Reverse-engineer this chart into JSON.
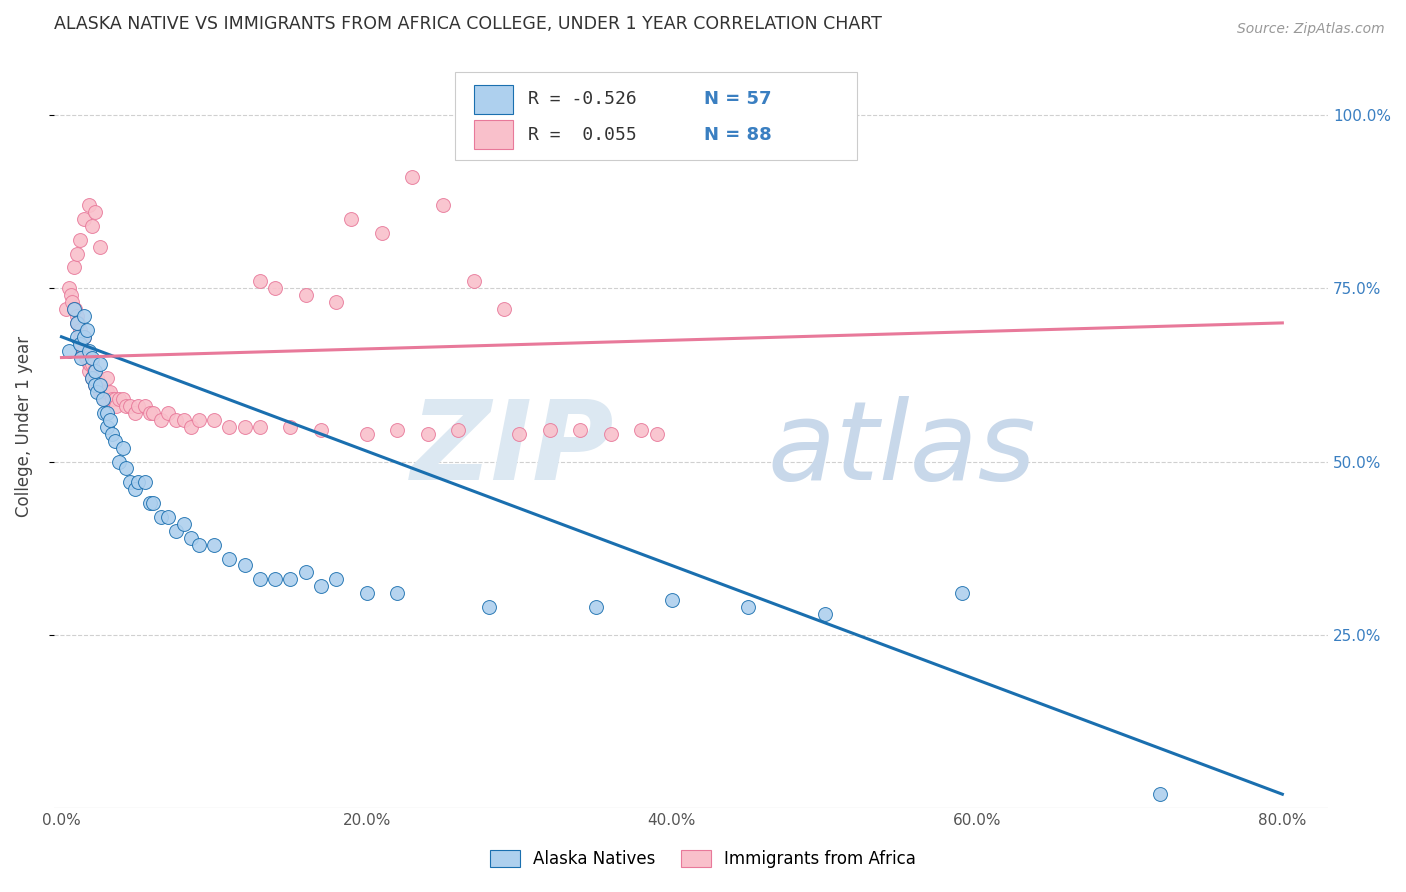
{
  "title": "ALASKA NATIVE VS IMMIGRANTS FROM AFRICA COLLEGE, UNDER 1 YEAR CORRELATION CHART",
  "source": "Source: ZipAtlas.com",
  "ylabel": "College, Under 1 year",
  "x_tick_labels": [
    "0.0%",
    "",
    "20.0%",
    "",
    "40.0%",
    "",
    "60.0%",
    "",
    "80.0%"
  ],
  "x_tick_positions": [
    0.0,
    0.1,
    0.2,
    0.3,
    0.4,
    0.5,
    0.6,
    0.7,
    0.8
  ],
  "y_tick_labels_right": [
    "100.0%",
    "75.0%",
    "50.0%",
    "25.0%"
  ],
  "y_tick_positions_right": [
    1.0,
    0.75,
    0.5,
    0.25
  ],
  "xlim": [
    -0.005,
    0.83
  ],
  "ylim": [
    0.0,
    1.1
  ],
  "color_blue": "#aed0ee",
  "color_pink": "#f9c0cb",
  "line_blue": "#1a6faf",
  "line_pink": "#e8799a",
  "background_color": "#ffffff",
  "grid_color": "#d0d0d0",
  "blue_scatter_x": [
    0.005,
    0.008,
    0.01,
    0.01,
    0.012,
    0.013,
    0.015,
    0.015,
    0.017,
    0.018,
    0.02,
    0.02,
    0.022,
    0.022,
    0.023,
    0.025,
    0.025,
    0.027,
    0.028,
    0.03,
    0.03,
    0.032,
    0.033,
    0.035,
    0.038,
    0.04,
    0.042,
    0.045,
    0.048,
    0.05,
    0.055,
    0.058,
    0.06,
    0.065,
    0.07,
    0.075,
    0.08,
    0.085,
    0.09,
    0.1,
    0.11,
    0.12,
    0.13,
    0.14,
    0.15,
    0.16,
    0.17,
    0.18,
    0.2,
    0.22,
    0.28,
    0.35,
    0.4,
    0.45,
    0.5,
    0.59,
    0.72
  ],
  "blue_scatter_y": [
    0.66,
    0.72,
    0.7,
    0.68,
    0.67,
    0.65,
    0.71,
    0.68,
    0.69,
    0.66,
    0.62,
    0.65,
    0.63,
    0.61,
    0.6,
    0.64,
    0.61,
    0.59,
    0.57,
    0.57,
    0.55,
    0.56,
    0.54,
    0.53,
    0.5,
    0.52,
    0.49,
    0.47,
    0.46,
    0.47,
    0.47,
    0.44,
    0.44,
    0.42,
    0.42,
    0.4,
    0.41,
    0.39,
    0.38,
    0.38,
    0.36,
    0.35,
    0.33,
    0.33,
    0.33,
    0.34,
    0.32,
    0.33,
    0.31,
    0.31,
    0.29,
    0.29,
    0.3,
    0.29,
    0.28,
    0.31,
    0.02
  ],
  "pink_scatter_x": [
    0.003,
    0.005,
    0.006,
    0.007,
    0.008,
    0.009,
    0.01,
    0.01,
    0.011,
    0.012,
    0.012,
    0.013,
    0.013,
    0.014,
    0.015,
    0.015,
    0.016,
    0.017,
    0.018,
    0.018,
    0.019,
    0.02,
    0.02,
    0.021,
    0.022,
    0.022,
    0.023,
    0.024,
    0.025,
    0.025,
    0.026,
    0.027,
    0.028,
    0.03,
    0.03,
    0.032,
    0.033,
    0.035,
    0.036,
    0.038,
    0.04,
    0.042,
    0.045,
    0.048,
    0.05,
    0.055,
    0.058,
    0.06,
    0.065,
    0.07,
    0.075,
    0.08,
    0.085,
    0.09,
    0.1,
    0.11,
    0.12,
    0.13,
    0.15,
    0.17,
    0.2,
    0.22,
    0.24,
    0.26,
    0.3,
    0.32,
    0.34,
    0.36,
    0.38,
    0.39,
    0.13,
    0.14,
    0.16,
    0.18,
    0.19,
    0.21,
    0.23,
    0.25,
    0.27,
    0.29,
    0.008,
    0.01,
    0.012,
    0.015,
    0.018,
    0.02,
    0.022,
    0.025
  ],
  "pink_scatter_y": [
    0.72,
    0.75,
    0.74,
    0.73,
    0.72,
    0.72,
    0.71,
    0.7,
    0.7,
    0.69,
    0.68,
    0.68,
    0.67,
    0.66,
    0.68,
    0.66,
    0.65,
    0.65,
    0.64,
    0.63,
    0.64,
    0.64,
    0.62,
    0.63,
    0.62,
    0.61,
    0.62,
    0.61,
    0.61,
    0.6,
    0.61,
    0.6,
    0.59,
    0.62,
    0.6,
    0.6,
    0.59,
    0.59,
    0.58,
    0.59,
    0.59,
    0.58,
    0.58,
    0.57,
    0.58,
    0.58,
    0.57,
    0.57,
    0.56,
    0.57,
    0.56,
    0.56,
    0.55,
    0.56,
    0.56,
    0.55,
    0.55,
    0.55,
    0.55,
    0.545,
    0.54,
    0.545,
    0.54,
    0.545,
    0.54,
    0.545,
    0.545,
    0.54,
    0.545,
    0.54,
    0.76,
    0.75,
    0.74,
    0.73,
    0.85,
    0.83,
    0.91,
    0.87,
    0.76,
    0.72,
    0.78,
    0.8,
    0.82,
    0.85,
    0.87,
    0.84,
    0.86,
    0.81
  ],
  "blue_line_x": [
    0.0,
    0.8
  ],
  "blue_line_y": [
    0.68,
    0.02
  ],
  "pink_line_x": [
    0.0,
    0.8
  ],
  "pink_line_y": [
    0.65,
    0.7
  ],
  "legend_R_blue": "R = -0.526",
  "legend_N_blue": "N = 57",
  "legend_R_pink": "R =  0.055",
  "legend_N_pink": "N = 88",
  "legend_labels": [
    "Alaska Natives",
    "Immigrants from Africa"
  ]
}
